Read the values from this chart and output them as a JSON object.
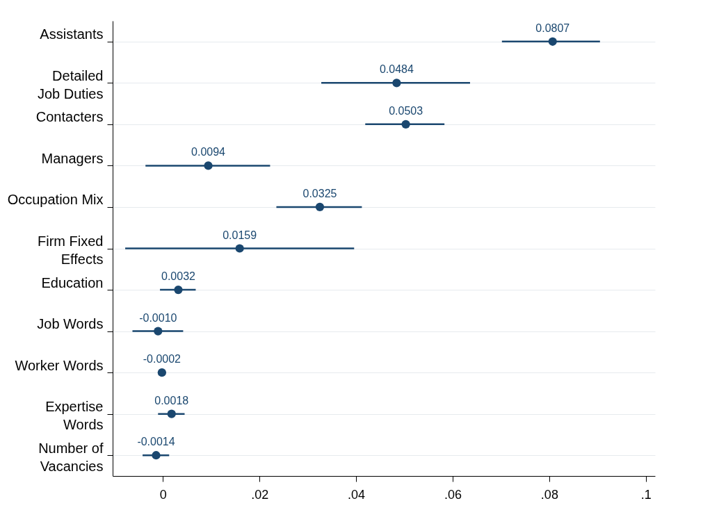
{
  "chart_data": {
    "type": "scatter",
    "categories": [
      "Assistants",
      "Detailed\nJob Duties",
      "Contacters",
      "Managers",
      "Occupation Mix",
      "Firm Fixed\nEffects",
      "Education",
      "Job Words",
      "Worker Words",
      "Expertise\nWords",
      "Number of\nVacancies"
    ],
    "orientation": "horizontal",
    "series": [
      {
        "color": "#1a476f",
        "values": [
          0.0807,
          0.0484,
          0.0503,
          0.0094,
          0.0325,
          0.0159,
          0.0032,
          -0.001,
          -0.0002,
          0.0018,
          -0.0014
        ],
        "errors": [
          [
            0.0702,
            0.0905
          ],
          [
            0.0328,
            0.0636
          ],
          [
            0.0419,
            0.0583
          ],
          [
            -0.0036,
            0.0222
          ],
          [
            0.0235,
            0.0412
          ],
          [
            -0.0078,
            0.0396
          ],
          [
            -0.0006,
            0.0068
          ],
          [
            -0.0063,
            0.0042
          ],
          [
            -0.001,
            0.0006
          ],
          [
            -0.001,
            0.0045
          ],
          [
            -0.0042,
            0.0013
          ]
        ],
        "value_labels": [
          "0.0807",
          "0.0484",
          "0.0503",
          "0.0094",
          "0.0325",
          "0.0159",
          "0.0032",
          "-0.0010",
          "-0.0002",
          "0.0018",
          "-0.0014"
        ]
      }
    ],
    "xlim": [
      -0.0104,
      0.1019
    ],
    "xticks": [
      0,
      {
        "value": 0.02,
        "label": ".02"
      },
      {
        "value": 0.04,
        "label": ".04"
      },
      {
        "value": 0.06,
        "label": ".06"
      },
      {
        "value": 0.08,
        "label": ".08"
      },
      {
        "value": 0.1,
        "label": ".1"
      }
    ],
    "grid": "y",
    "marker": "circle"
  }
}
